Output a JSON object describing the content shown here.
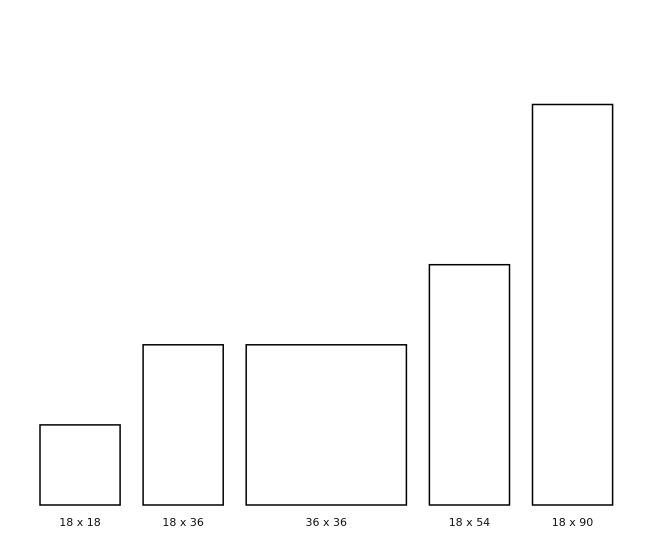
{
  "items": [
    {
      "label": "18 x 18",
      "width": 18,
      "height": 18
    },
    {
      "label": "18 x 36",
      "width": 18,
      "height": 36
    },
    {
      "label": "36 x 36",
      "width": 36,
      "height": 36
    },
    {
      "label": "18 x 54",
      "width": 18,
      "height": 54
    },
    {
      "label": "18 x 90",
      "width": 18,
      "height": 90
    }
  ]
}
